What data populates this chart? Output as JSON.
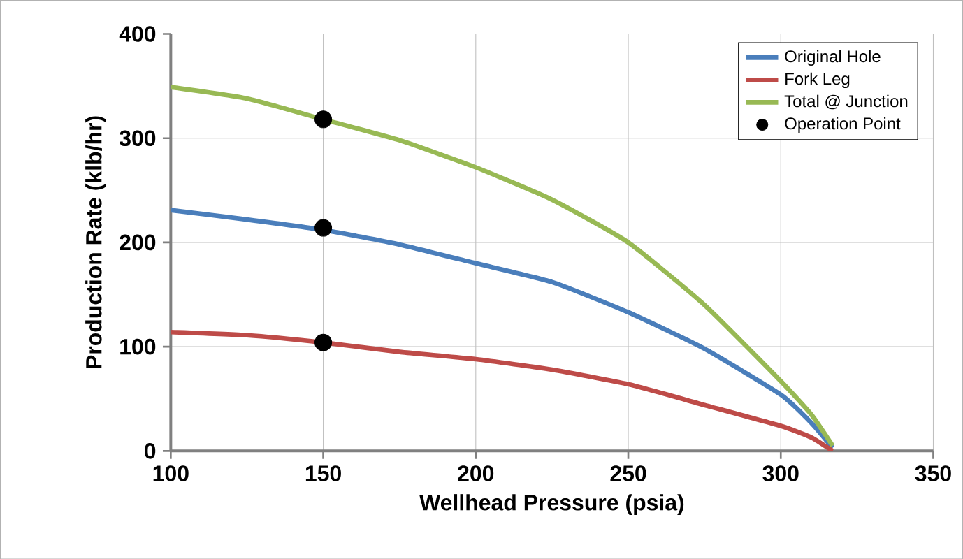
{
  "chart_data": {
    "type": "line",
    "xlabel": "Wellhead Pressure (psia)",
    "ylabel": "Production Rate (klb/hr)",
    "xlim": [
      100,
      350
    ],
    "xticks": [
      100,
      150,
      200,
      250,
      300,
      350
    ],
    "ylim": [
      0,
      400
    ],
    "yticks": [
      0,
      100,
      200,
      300,
      400
    ],
    "grid": true,
    "legend": "top right",
    "series": [
      {
        "name": "Original Hole",
        "color": "#4a7ebb",
        "x": [
          100,
          125,
          150,
          175,
          200,
          225,
          250,
          275,
          300,
          310,
          317
        ],
        "values": [
          231,
          222,
          212,
          198,
          180,
          162,
          133,
          98,
          54,
          27,
          3
        ]
      },
      {
        "name": "Fork Leg",
        "color": "#be4b48",
        "x": [
          100,
          125,
          150,
          175,
          200,
          225,
          250,
          275,
          300,
          310,
          317
        ],
        "values": [
          114,
          111,
          104,
          95,
          88,
          78,
          64,
          44,
          24,
          13,
          0
        ]
      },
      {
        "name": "Total @ Junction",
        "color": "#98b954",
        "x": [
          100,
          125,
          150,
          175,
          200,
          225,
          250,
          275,
          300,
          310,
          317
        ],
        "values": [
          349,
          338,
          318,
          298,
          272,
          241,
          200,
          140,
          67,
          35,
          5
        ]
      },
      {
        "name": "Operation Point",
        "type": "scatter",
        "color": "#000000",
        "x": [
          150,
          150,
          150
        ],
        "values": [
          318,
          214,
          104
        ]
      }
    ]
  }
}
